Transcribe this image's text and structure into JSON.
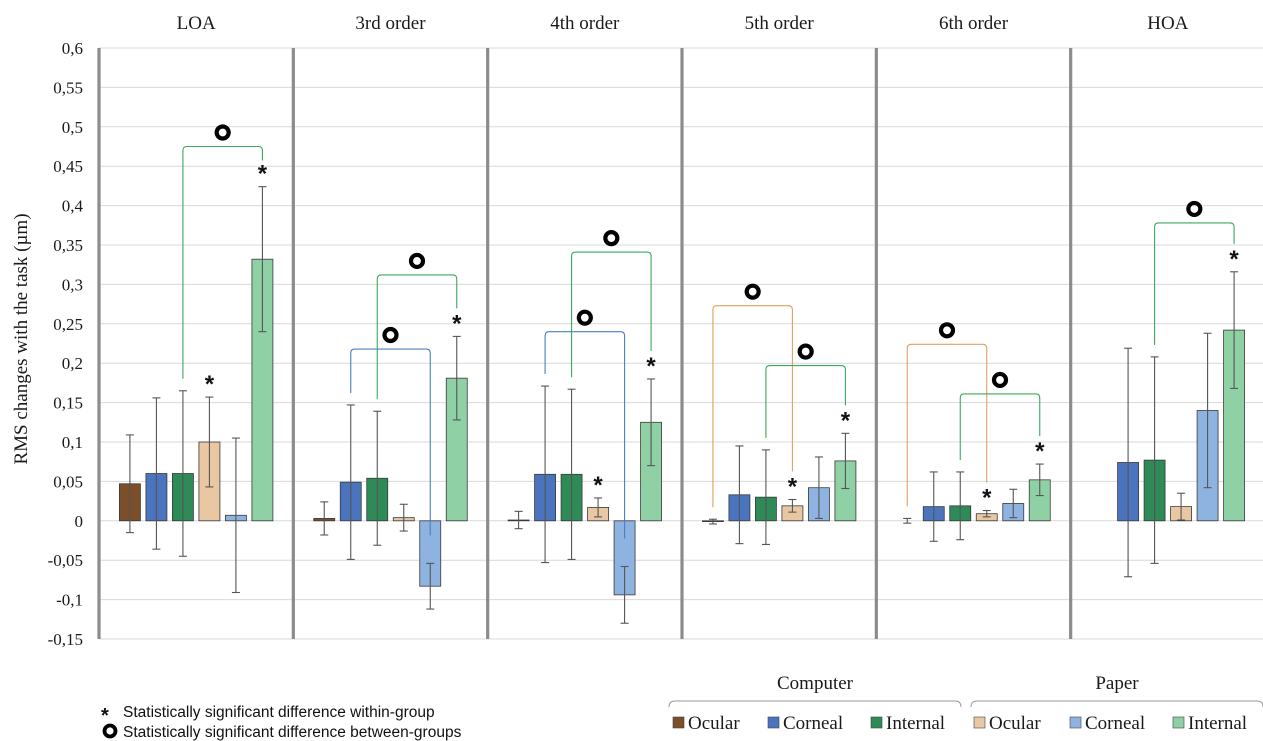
{
  "chart_data": {
    "type": "bar",
    "ylabel": "RMS changes with the task (µm)",
    "ylim": [
      -0.15,
      0.6
    ],
    "yticks": [
      "-0,15",
      "-0,1",
      "-0,05",
      "0",
      "0,05",
      "0,1",
      "0,15",
      "0,2",
      "0,25",
      "0,3",
      "0,35",
      "0,4",
      "0,45",
      "0,5",
      "0,55",
      "0,6"
    ],
    "grid": true,
    "categories": [
      "LOA",
      "3rd order",
      "4th order",
      "5th order",
      "6th order",
      "HOA"
    ],
    "groups": [
      {
        "name": "Computer",
        "series": [
          "Ocular",
          "Corneal",
          "Internal"
        ]
      },
      {
        "name": "Paper",
        "series": [
          "Ocular",
          "Corneal",
          "Internal"
        ]
      }
    ],
    "series": [
      {
        "name": "Ocular",
        "group": "Computer",
        "color": "#7b4f2a",
        "values": [
          0.047,
          0.003,
          0.001,
          -0.001,
          0.0,
          0.0
        ],
        "err": [
          0.062,
          0.021,
          0.011,
          0.003,
          0.003,
          0.0
        ]
      },
      {
        "name": "Corneal",
        "group": "Computer",
        "color": "#4a74be",
        "values": [
          0.06,
          0.049,
          0.059,
          0.033,
          0.018,
          0.074
        ],
        "err": [
          0.096,
          0.098,
          0.112,
          0.062,
          0.044,
          0.145
        ]
      },
      {
        "name": "Internal",
        "group": "Computer",
        "color": "#2e8a57",
        "values": [
          0.06,
          0.054,
          0.059,
          0.03,
          0.019,
          0.077
        ],
        "err": [
          0.105,
          0.085,
          0.108,
          0.06,
          0.043,
          0.131
        ]
      },
      {
        "name": "Ocular",
        "group": "Paper",
        "color": "#e8c7a2",
        "values": [
          0.1,
          0.004,
          0.017,
          0.019,
          0.009,
          0.018
        ],
        "err": [
          0.057,
          0.017,
          0.012,
          0.008,
          0.004,
          0.017
        ]
      },
      {
        "name": "Corneal",
        "group": "Paper",
        "color": "#8fb3e0",
        "values": [
          0.007,
          -0.083,
          -0.094,
          0.042,
          0.022,
          0.14
        ],
        "err": [
          0.098,
          0.029,
          0.036,
          0.039,
          0.018,
          0.098
        ]
      },
      {
        "name": "Internal",
        "group": "Paper",
        "color": "#8fd0a5",
        "values": [
          0.332,
          0.181,
          0.125,
          0.076,
          0.052,
          0.242
        ],
        "err": [
          0.092,
          0.053,
          0.055,
          0.035,
          0.02,
          0.074
        ]
      }
    ],
    "within_group_markers": [
      {
        "category": 0,
        "series": 3
      },
      {
        "category": 0,
        "series": 5
      },
      {
        "category": 1,
        "series": 5
      },
      {
        "category": 2,
        "series": 3
      },
      {
        "category": 2,
        "series": 5
      },
      {
        "category": 3,
        "series": 3
      },
      {
        "category": 3,
        "series": 5
      },
      {
        "category": 4,
        "series": 3
      },
      {
        "category": 4,
        "series": 5
      },
      {
        "category": 5,
        "series": 5
      }
    ],
    "between_group_brackets": [
      {
        "category": 0,
        "from": 2,
        "to": 5,
        "y": 0.475,
        "color": "#3aaa5c"
      },
      {
        "category": 1,
        "from": 1,
        "to": 4,
        "y": 0.218,
        "color": "#4a7fc1"
      },
      {
        "category": 1,
        "from": 2,
        "to": 5,
        "y": 0.312,
        "color": "#3aaa5c"
      },
      {
        "category": 2,
        "from": 1,
        "to": 4,
        "y": 0.24,
        "color": "#4a7fc1"
      },
      {
        "category": 2,
        "from": 2,
        "to": 5,
        "y": 0.341,
        "color": "#3aaa5c"
      },
      {
        "category": 3,
        "from": 0,
        "to": 3,
        "y": 0.273,
        "color": "#e0a060"
      },
      {
        "category": 3,
        "from": 2,
        "to": 5,
        "y": 0.197,
        "color": "#3aaa5c"
      },
      {
        "category": 4,
        "from": 0,
        "to": 3,
        "y": 0.224,
        "color": "#e0a060"
      },
      {
        "category": 4,
        "from": 2,
        "to": 5,
        "y": 0.161,
        "color": "#3aaa5c"
      },
      {
        "category": 5,
        "from": 2,
        "to": 5,
        "y": 0.378,
        "color": "#3aaa5c"
      }
    ],
    "notes": [
      {
        "symbol": "*",
        "text": "Statistically significant difference within-group"
      },
      {
        "symbol": "o",
        "text": "Statistically significant difference between-groups"
      }
    ],
    "legend_position": "bottom-right"
  }
}
